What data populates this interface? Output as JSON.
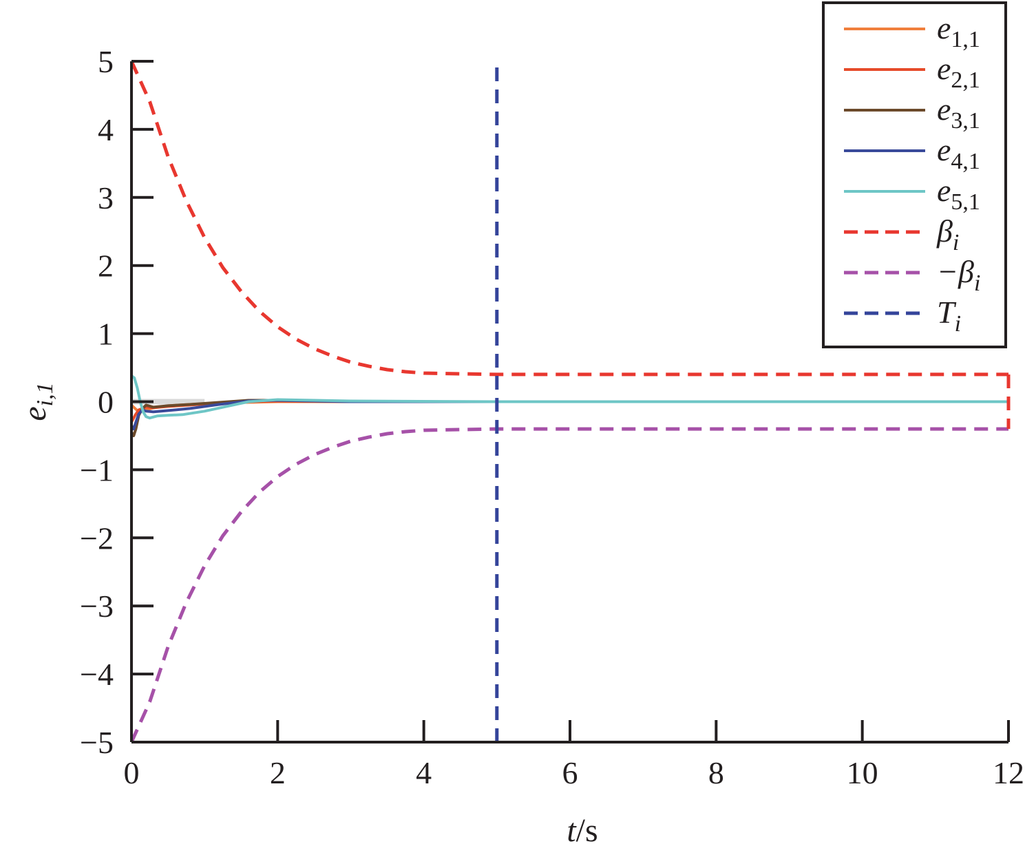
{
  "chart_data": {
    "type": "line",
    "xlabel": {
      "italic": "t",
      "rest": "/s"
    },
    "ylabel": {
      "base": "e",
      "sub": "i,1"
    },
    "xlim": [
      0,
      12
    ],
    "ylim": [
      -5,
      5
    ],
    "xticks": [
      0,
      2,
      4,
      6,
      8,
      10,
      12
    ],
    "yticks": [
      -5,
      -4,
      -3,
      -2,
      -1,
      0,
      1,
      2,
      3,
      4,
      5
    ],
    "grid": false,
    "legend_position": "top-right",
    "series": [
      {
        "name": "e",
        "sub": "1,1",
        "color": "#f07f3c",
        "dash": "solid",
        "x": [
          0,
          0.05,
          0.1,
          0.2,
          0.3,
          0.5,
          0.8,
          1.2,
          1.6,
          2.0,
          3,
          5,
          8,
          12
        ],
        "y": [
          -0.05,
          -0.1,
          -0.15,
          -0.12,
          -0.09,
          -0.06,
          -0.04,
          -0.02,
          -0.01,
          0,
          0,
          0,
          0,
          0
        ]
      },
      {
        "name": "e",
        "sub": "2,1",
        "color": "#e64b2a",
        "dash": "solid",
        "x": [
          0,
          0.05,
          0.1,
          0.2,
          0.3,
          0.5,
          0.8,
          1.2,
          1.6,
          2.0,
          3,
          5,
          8,
          12
        ],
        "y": [
          -0.3,
          -0.2,
          -0.12,
          -0.08,
          -0.09,
          -0.07,
          -0.05,
          -0.02,
          0,
          0.01,
          0,
          0,
          0,
          0
        ]
      },
      {
        "name": "e",
        "sub": "3,1",
        "color": "#6b4a2b",
        "dash": "solid",
        "x": [
          0,
          0.03,
          0.06,
          0.1,
          0.15,
          0.2,
          0.3,
          0.5,
          0.8,
          1.2,
          1.6,
          2.0,
          3,
          5,
          8,
          12
        ],
        "y": [
          -0.45,
          -0.5,
          -0.4,
          -0.2,
          -0.1,
          -0.05,
          -0.08,
          -0.06,
          -0.04,
          -0.01,
          0.02,
          0.02,
          0,
          0,
          0,
          0
        ]
      },
      {
        "name": "e",
        "sub": "4,1",
        "color": "#3a4a9a",
        "dash": "solid",
        "x": [
          0,
          0.03,
          0.06,
          0.1,
          0.15,
          0.2,
          0.3,
          0.5,
          0.8,
          1.2,
          1.6,
          2.0,
          3,
          5,
          8,
          12
        ],
        "y": [
          -0.35,
          -0.4,
          -0.3,
          -0.18,
          -0.12,
          -0.14,
          -0.15,
          -0.13,
          -0.1,
          -0.04,
          0.01,
          0.02,
          0,
          0,
          0,
          0
        ]
      },
      {
        "name": "e",
        "sub": "5,1",
        "color": "#6ec6c6",
        "dash": "solid",
        "x": [
          0,
          0.04,
          0.08,
          0.12,
          0.16,
          0.2,
          0.25,
          0.35,
          0.5,
          0.7,
          1.0,
          1.3,
          1.6,
          2.0,
          2.5,
          3,
          5,
          8,
          12
        ],
        "y": [
          0.38,
          0.35,
          0.2,
          0.0,
          -0.15,
          -0.22,
          -0.24,
          -0.21,
          -0.2,
          -0.19,
          -0.14,
          -0.07,
          0.0,
          0.03,
          0.02,
          0.01,
          0,
          0,
          0
        ]
      },
      {
        "name": "β",
        "sub": "i",
        "color": "#e8372f",
        "dash": "dashed",
        "x": [
          0,
          0.25,
          0.5,
          0.75,
          1.0,
          1.25,
          1.5,
          1.75,
          2.0,
          2.25,
          2.5,
          2.75,
          3.0,
          3.25,
          3.5,
          3.75,
          4.0,
          4.5,
          5,
          6,
          8,
          10,
          12
        ],
        "y": [
          5.0,
          4.41,
          3.6,
          2.95,
          2.41,
          1.97,
          1.62,
          1.33,
          1.1,
          0.92,
          0.78,
          0.67,
          0.58,
          0.52,
          0.47,
          0.44,
          0.42,
          0.41,
          0.4,
          0.4,
          0.4,
          0.4,
          0.4
        ]
      },
      {
        "name": "−β",
        "sub": "i",
        "color": "#a651a8",
        "dash": "dashed",
        "x": [
          0,
          0.25,
          0.5,
          0.75,
          1.0,
          1.25,
          1.5,
          1.75,
          2.0,
          2.25,
          2.5,
          2.75,
          3.0,
          3.25,
          3.5,
          3.75,
          4.0,
          4.5,
          5,
          6,
          8,
          10,
          12
        ],
        "y": [
          -5.0,
          -4.41,
          -3.6,
          -2.95,
          -2.41,
          -1.97,
          -1.62,
          -1.33,
          -1.1,
          -0.92,
          -0.78,
          -0.67,
          -0.58,
          -0.52,
          -0.47,
          -0.44,
          -0.42,
          -0.41,
          -0.4,
          -0.4,
          -0.4,
          -0.4,
          -0.4
        ]
      },
      {
        "name": "T",
        "sub": "i",
        "color": "#34449a",
        "dash": "dashed",
        "x": [
          5,
          5
        ],
        "y": [
          -5,
          5
        ]
      }
    ]
  }
}
